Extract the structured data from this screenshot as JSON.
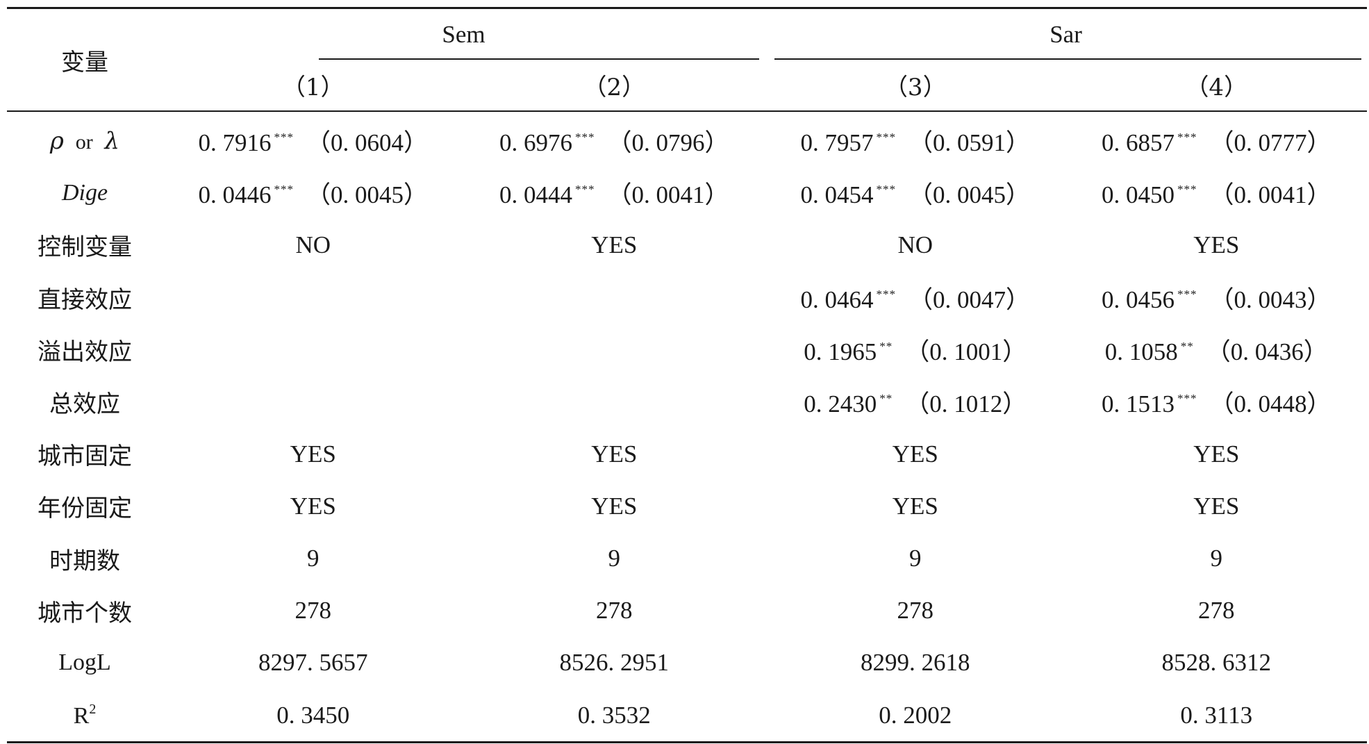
{
  "table": {
    "header": {
      "variable_label": "变量",
      "groups": [
        {
          "label": "Sem"
        },
        {
          "label": "Sar"
        }
      ],
      "columns": [
        "（1）",
        "（2）",
        "（3）",
        "（4）"
      ]
    },
    "rows": [
      {
        "label_rho": "ρ",
        "label_or": "or",
        "label_lambda": "λ",
        "cells": [
          {
            "coef": "0. 7916",
            "stars": "***",
            "se": "（0. 0604）"
          },
          {
            "coef": "0. 6976",
            "stars": "***",
            "se": "（0. 0796）"
          },
          {
            "coef": "0. 7957",
            "stars": "***",
            "se": "（0. 0591）"
          },
          {
            "coef": "0. 6857",
            "stars": "***",
            "se": "（0. 0777）"
          }
        ]
      },
      {
        "label": "Dige",
        "cells": [
          {
            "coef": "0. 0446",
            "stars": "***",
            "se": "（0. 0045）"
          },
          {
            "coef": "0. 0444",
            "stars": "***",
            "se": "（0. 0041）"
          },
          {
            "coef": "0. 0454",
            "stars": "***",
            "se": "（0. 0045）"
          },
          {
            "coef": "0. 0450",
            "stars": "***",
            "se": "（0. 0041）"
          }
        ]
      },
      {
        "label": "控制变量",
        "values": [
          "NO",
          "YES",
          "NO",
          "YES"
        ]
      },
      {
        "label": "直接效应",
        "cells": [
          null,
          null,
          {
            "coef": "0. 0464",
            "stars": "***",
            "se": "（0. 0047）"
          },
          {
            "coef": "0. 0456",
            "stars": "***",
            "se": "（0. 0043）"
          }
        ]
      },
      {
        "label": "溢出效应",
        "cells": [
          null,
          null,
          {
            "coef": "0. 1965",
            "stars": "**",
            "se": "（0. 1001）"
          },
          {
            "coef": "0. 1058",
            "stars": "**",
            "se": "（0. 0436）"
          }
        ]
      },
      {
        "label": "总效应",
        "cells": [
          null,
          null,
          {
            "coef": "0. 2430",
            "stars": "**",
            "se": "（0. 1012）"
          },
          {
            "coef": "0. 1513",
            "stars": "***",
            "se": "（0. 0448）"
          }
        ]
      },
      {
        "label": "城市固定",
        "values": [
          "YES",
          "YES",
          "YES",
          "YES"
        ]
      },
      {
        "label": "年份固定",
        "values": [
          "YES",
          "YES",
          "YES",
          "YES"
        ]
      },
      {
        "label": "时期数",
        "values": [
          "9",
          "9",
          "9",
          "9"
        ]
      },
      {
        "label": "城市个数",
        "values": [
          "278",
          "278",
          "278",
          "278"
        ]
      },
      {
        "label": "LogL",
        "values": [
          "8297. 5657",
          "8526. 2951",
          "8299. 2618",
          "8528. 6312"
        ]
      },
      {
        "label_base": "R",
        "label_sup": "2",
        "values": [
          "0. 3450",
          "0. 3532",
          "0. 2002",
          "0. 3113"
        ]
      }
    ]
  }
}
